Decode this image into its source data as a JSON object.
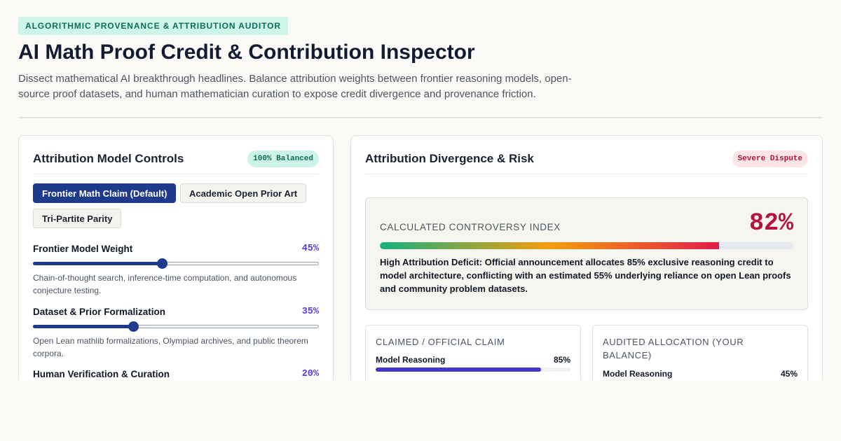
{
  "header": {
    "tag": "ALGORITHMIC PROVENANCE & ATTRIBUTION AUDITOR",
    "title": "AI Math Proof Credit & Contribution Inspector",
    "subtitle": "Dissect mathematical AI breakthrough headlines. Balance attribution weights between frontier reasoning models, open-source proof datasets, and human mathematician curation to expose credit divergence and provenance friction."
  },
  "controls": {
    "title": "Attribution Model Controls",
    "badge": "100% Balanced",
    "presets": [
      {
        "label": "Frontier Math Claim (Default)",
        "active": true
      },
      {
        "label": "Academic Open Prior Art",
        "active": false
      },
      {
        "label": "Tri-Partite Parity",
        "active": false
      }
    ],
    "weights": [
      {
        "label": "Frontier Model Weight",
        "value_text": "45%",
        "value": 45,
        "description": "Chain-of-thought search, inference-time computation, and autonomous conjecture testing."
      },
      {
        "label": "Dataset & Prior Formalization",
        "value_text": "35%",
        "value": 35,
        "description": "Open Lean mathlib formalizations, Olympiad archives, and public theorem corpora."
      },
      {
        "label": "Human Verification & Curation",
        "value_text": "20%",
        "value": 20,
        "description": ""
      }
    ]
  },
  "risk": {
    "title": "Attribution Divergence & Risk",
    "badge": "Severe Dispute",
    "index_label": "CALCULATED CONTROVERSY INDEX",
    "index_text": "82%",
    "index_value": 82,
    "message": "High Attribution Deficit: Official announcement allocates 85% exclusive reasoning credit to model architecture, conflicting with an estimated 55% underlying reliance on open Lean proofs and community problem datasets."
  },
  "claimed": {
    "title": "CLAIMED / OFFICIAL CLAIM",
    "rows": [
      {
        "label": "Model Reasoning",
        "value_text": "85%",
        "value": 85
      }
    ]
  },
  "audited": {
    "title": "AUDITED ALLOCATION (YOUR BALANCE)",
    "rows": [
      {
        "label": "Model Reasoning",
        "value_text": "45%",
        "value": 45
      }
    ]
  },
  "colors": {
    "accent_navy": "#1e3a8a",
    "accent_purple": "#5b3bd6",
    "risk_red": "#b4143c",
    "balanced_green": "#0e6e58"
  }
}
